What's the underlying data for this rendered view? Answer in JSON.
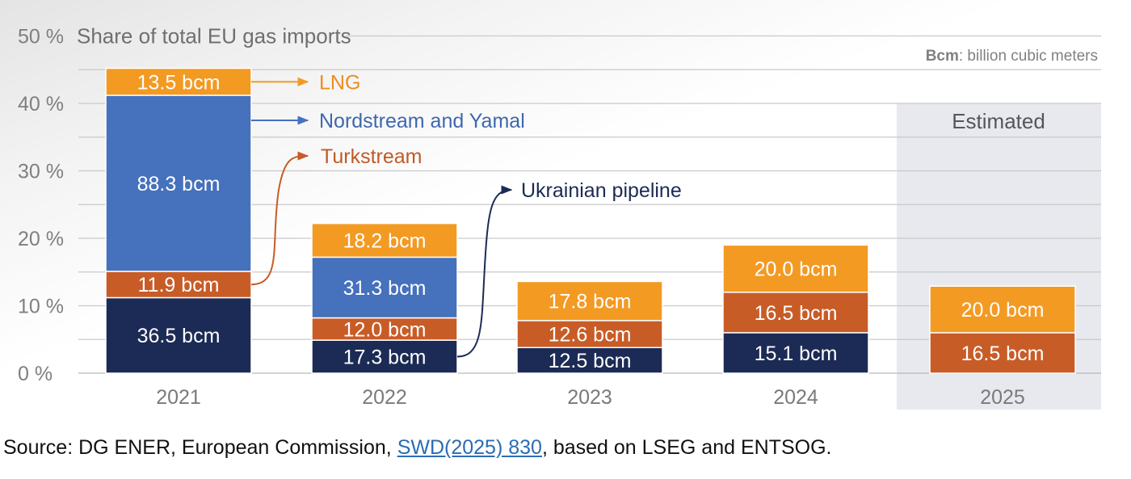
{
  "chart_data": {
    "type": "bar",
    "stacked": true,
    "title": "Share of total EU gas imports",
    "unit_note_bold": "Bcm",
    "unit_note_text": ": billion cubic meters",
    "categories": [
      "2021",
      "2022",
      "2023",
      "2024",
      "2025"
    ],
    "y_ticks": [
      {
        "value": 0,
        "label": "0 %"
      },
      {
        "value": 10,
        "label": "10 %"
      },
      {
        "value": 20,
        "label": "20 %"
      },
      {
        "value": 30,
        "label": "30 %"
      },
      {
        "value": 40,
        "label": "40 %"
      },
      {
        "value": 50,
        "label": "50 %"
      }
    ],
    "ylim": [
      0,
      50
    ],
    "grid": true,
    "estimated_label": "Estimated",
    "estimated_category": "2025",
    "series": [
      {
        "name": "Ukrainian pipeline",
        "color": "#1c2b55",
        "label_color": "#1c2b55",
        "values": [
          11.2,
          4.9,
          3.8,
          6.0,
          0
        ],
        "labels": [
          "36.5 bcm",
          "17.3 bcm",
          "12.5 bcm",
          "15.1 bcm",
          ""
        ]
      },
      {
        "name": "Turkstream",
        "color": "#c85c27",
        "label_color": "#c05a26",
        "values": [
          3.9,
          3.3,
          4.0,
          6.0,
          6.0
        ],
        "labels": [
          "11.9 bcm",
          "12.0 bcm",
          "12.6 bcm",
          "16.5 bcm",
          "16.5 bcm"
        ]
      },
      {
        "name": "Nordstream and Yamal",
        "color": "#4571bd",
        "label_color": "#3f67ae",
        "values": [
          26.1,
          9.0,
          0,
          0,
          0
        ],
        "labels": [
          "88.3 bcm",
          "31.3 bcm",
          "",
          "",
          ""
        ]
      },
      {
        "name": "LNG",
        "color": "#f39a23",
        "label_color": "#ee8d1c",
        "values": [
          4.0,
          5.0,
          5.8,
          7.0,
          6.9
        ],
        "labels": [
          "13.5 bcm",
          "18.2 bcm",
          "17.8 bcm",
          "20.0 bcm",
          "20.0 bcm"
        ]
      }
    ]
  },
  "source": {
    "prefix": "Source: DG ENER, European Commission, ",
    "link_text": "SWD(2025) 830",
    "suffix": ", based on LSEG and ENTSOG."
  }
}
